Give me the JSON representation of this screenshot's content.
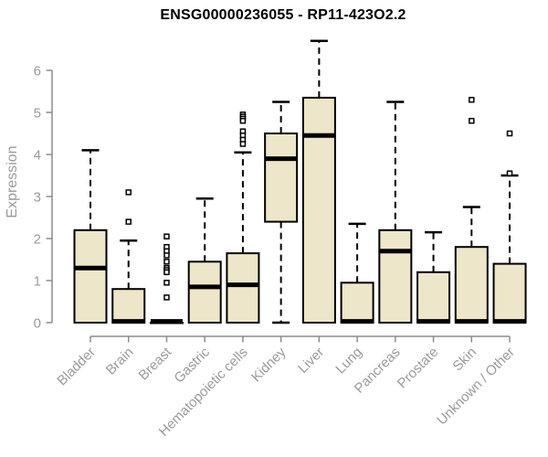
{
  "chart_data": {
    "type": "boxplot",
    "title": "ENSG00000236055 - RP11-423O2.2",
    "ylabel": "Expression",
    "xlabel": "",
    "ylim": [
      0,
      6.8
    ],
    "yticks": [
      0,
      1,
      2,
      3,
      4,
      5,
      6
    ],
    "grid": false,
    "legend": "none",
    "categories": [
      "Bladder",
      "Brain",
      "Breast",
      "Gastric",
      "Hematopoietic cells",
      "Kidney",
      "Liver",
      "Lung",
      "Pancreas",
      "Prostate",
      "Skin",
      "Unknown / Other"
    ],
    "boxes": [
      {
        "category": "Bladder",
        "lo": 0,
        "q1": 0,
        "median": 1.3,
        "q3": 2.2,
        "hi": 4.1,
        "outliers": []
      },
      {
        "category": "Brain",
        "lo": 0,
        "q1": 0,
        "median": 0.03,
        "q3": 0.8,
        "hi": 1.95,
        "outliers": [
          3.1,
          2.4
        ]
      },
      {
        "category": "Breast",
        "lo": 0,
        "q1": 0,
        "median": 0.03,
        "q3": 0,
        "hi": 0,
        "outliers": [
          2.05,
          1.8,
          1.7,
          1.6,
          1.45,
          1.3,
          1.25,
          1.2,
          0.95,
          0.6
        ]
      },
      {
        "category": "Gastric",
        "lo": 0,
        "q1": 0,
        "median": 0.85,
        "q3": 1.45,
        "hi": 2.95,
        "outliers": []
      },
      {
        "category": "Hematopoietic cells",
        "lo": 0,
        "q1": 0,
        "median": 0.9,
        "q3": 1.65,
        "hi": 4.05,
        "outliers": [
          4.95,
          4.9,
          4.85,
          4.8,
          4.55,
          4.45,
          4.35,
          4.25
        ]
      },
      {
        "category": "Kidney",
        "lo": 0,
        "q1": 2.4,
        "median": 3.9,
        "q3": 4.5,
        "hi": 5.25,
        "outliers": []
      },
      {
        "category": "Liver",
        "lo": 0,
        "q1": 0,
        "median": 4.45,
        "q3": 5.35,
        "hi": 6.7,
        "outliers": []
      },
      {
        "category": "Lung",
        "lo": 0,
        "q1": 0,
        "median": 0.03,
        "q3": 0.95,
        "hi": 2.35,
        "outliers": []
      },
      {
        "category": "Pancreas",
        "lo": 0,
        "q1": 0,
        "median": 1.7,
        "q3": 2.2,
        "hi": 5.25,
        "outliers": []
      },
      {
        "category": "Prostate",
        "lo": 0,
        "q1": 0,
        "median": 0.03,
        "q3": 1.2,
        "hi": 2.15,
        "outliers": []
      },
      {
        "category": "Skin",
        "lo": 0,
        "q1": 0,
        "median": 0.03,
        "q3": 1.8,
        "hi": 2.75,
        "outliers": [
          5.3,
          4.8
        ]
      },
      {
        "category": "Unknown / Other",
        "lo": 0,
        "q1": 0,
        "median": 0.03,
        "q3": 1.4,
        "hi": 3.5,
        "outliers": [
          4.5,
          3.55
        ]
      }
    ],
    "colors": {
      "box_fill": "#EDE6C9",
      "box_stroke": "#000000",
      "median": "#000000",
      "whisker": "#000000",
      "axis_line": "#8c8c8c",
      "axis_text": "#9a9a9a",
      "title": "#000000",
      "background": "#ffffff"
    }
  }
}
